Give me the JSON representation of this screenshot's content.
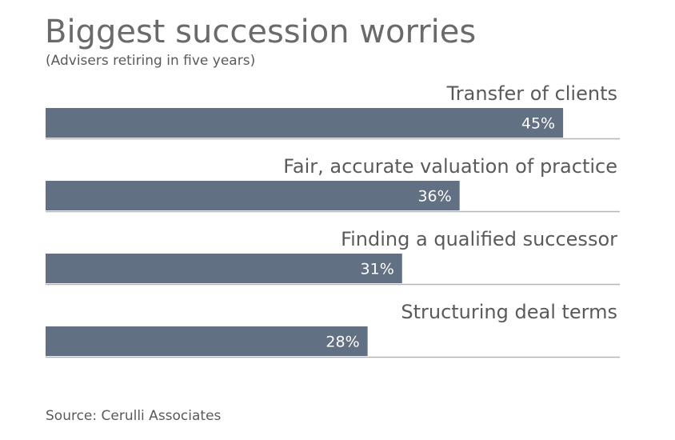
{
  "header": {
    "title": "Biggest succession worries",
    "subtitle": "(Advisers retiring in five years)"
  },
  "footer": {
    "source": "Source: Cerulli Associates"
  },
  "colors": {
    "bar": "#627083",
    "baseline": "#b4b4b4",
    "text": "#5a5a5a",
    "value_text": "#ffffff"
  },
  "chart_data": {
    "type": "bar",
    "orientation": "horizontal",
    "title": "Biggest succession worries",
    "subtitle": "(Advisers retiring in five years)",
    "categories": [
      "Transfer of clients",
      "Fair, accurate valuation of practice",
      "Finding a qualified successor",
      "Structuring deal terms"
    ],
    "values": [
      45,
      36,
      31,
      28
    ],
    "value_labels": [
      "45%",
      "36%",
      "31%",
      "28%"
    ],
    "unit": "%",
    "xlim": [
      0,
      50
    ],
    "grid": false,
    "legend": "none"
  }
}
